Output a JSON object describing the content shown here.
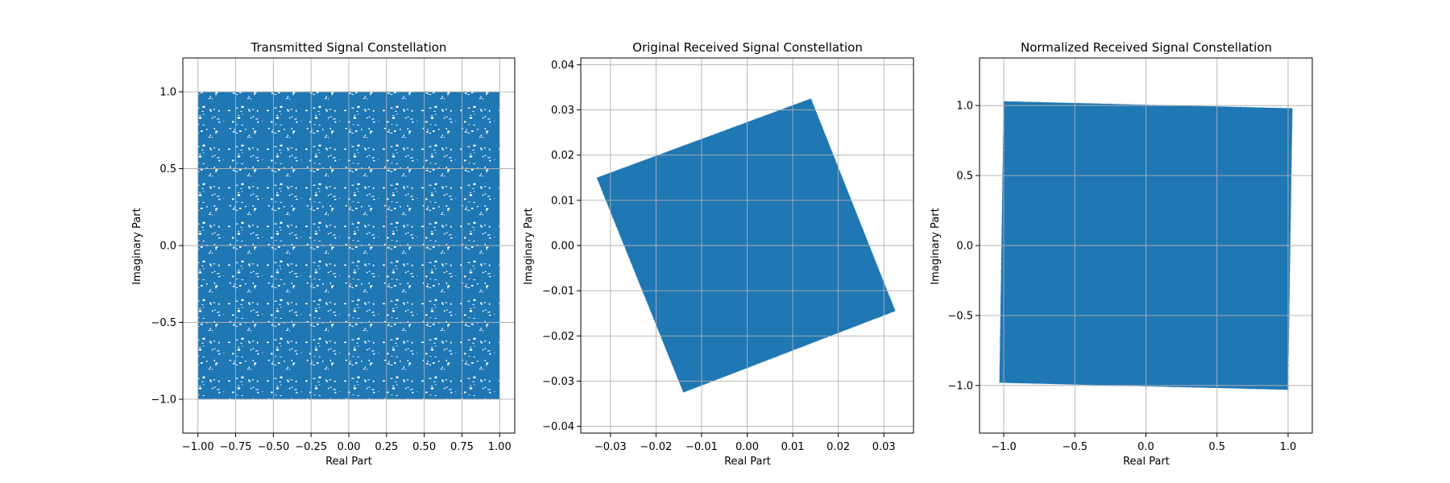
{
  "chart_data": [
    {
      "type": "scatter",
      "title": "Transmitted Signal Constellation",
      "xlabel": "Real Part",
      "ylabel": "Imaginary Part",
      "xlim": [
        -1.1,
        1.1
      ],
      "ylim": [
        -1.22,
        1.22
      ],
      "xticks": [
        -1.0,
        -0.75,
        -0.5,
        -0.25,
        0.0,
        0.25,
        0.5,
        0.75,
        1.0
      ],
      "xtick_labels": [
        "−1.00",
        "−0.75",
        "−0.50",
        "−0.25",
        "0.00",
        "0.25",
        "0.50",
        "0.75",
        "1.00"
      ],
      "yticks": [
        -1.0,
        -0.5,
        0.0,
        0.5,
        1.0
      ],
      "ytick_labels": [
        "−1.0",
        "−0.5",
        "0.0",
        "0.5",
        "1.0"
      ],
      "grid": true,
      "color": "#1f77b4",
      "series": [
        {
          "distribution": "uniform-square",
          "x_range": [
            -1.0,
            1.0
          ],
          "y_range": [
            -1.0,
            1.0
          ],
          "corners": [
            [
              -1.0,
              1.0
            ],
            [
              1.0,
              1.0
            ],
            [
              1.0,
              -1.0
            ],
            [
              -1.0,
              -1.0
            ]
          ]
        }
      ]
    },
    {
      "type": "scatter",
      "title": "Original Received Signal Constellation",
      "xlabel": "Real Part",
      "ylabel": "Imaginary Part",
      "xlim": [
        -0.0365,
        0.0365
      ],
      "ylim": [
        -0.0415,
        0.0415
      ],
      "xticks": [
        -0.03,
        -0.02,
        -0.01,
        0.0,
        0.01,
        0.02,
        0.03
      ],
      "xtick_labels": [
        "−0.03",
        "−0.02",
        "−0.01",
        "0.00",
        "0.01",
        "0.02",
        "0.03"
      ],
      "yticks": [
        -0.04,
        -0.03,
        -0.02,
        -0.01,
        0.0,
        0.01,
        0.02,
        0.03,
        0.04
      ],
      "ytick_labels": [
        "−0.04",
        "−0.03",
        "−0.02",
        "−0.01",
        "0.00",
        "0.01",
        "0.02",
        "0.03",
        "0.04"
      ],
      "grid": true,
      "color": "#1f77b4",
      "series": [
        {
          "distribution": "rotated-square",
          "corners": [
            [
              -0.033,
              0.015
            ],
            [
              0.014,
              0.0325
            ],
            [
              0.0325,
              -0.0145
            ],
            [
              -0.014,
              -0.0325
            ]
          ]
        }
      ]
    },
    {
      "type": "scatter",
      "title": "Normalized Received Signal Constellation",
      "xlabel": "Real Part",
      "ylabel": "Imaginary Part",
      "xlim": [
        -1.17,
        1.17
      ],
      "ylim": [
        -1.34,
        1.34
      ],
      "xticks": [
        -1.0,
        -0.5,
        0.0,
        0.5,
        1.0
      ],
      "xtick_labels": [
        "−1.0",
        "−0.5",
        "0.0",
        "0.5",
        "1.0"
      ],
      "yticks": [
        -1.0,
        -0.5,
        0.0,
        0.5,
        1.0
      ],
      "ytick_labels": [
        "−1.0",
        "−0.5",
        "0.0",
        "0.5",
        "1.0"
      ],
      "grid": true,
      "color": "#1f77b4",
      "series": [
        {
          "distribution": "noisy-square",
          "corners": [
            [
              -1.0,
              1.03
            ],
            [
              1.03,
              0.98
            ],
            [
              1.0,
              -1.03
            ],
            [
              -1.03,
              -0.98
            ]
          ]
        }
      ]
    }
  ]
}
